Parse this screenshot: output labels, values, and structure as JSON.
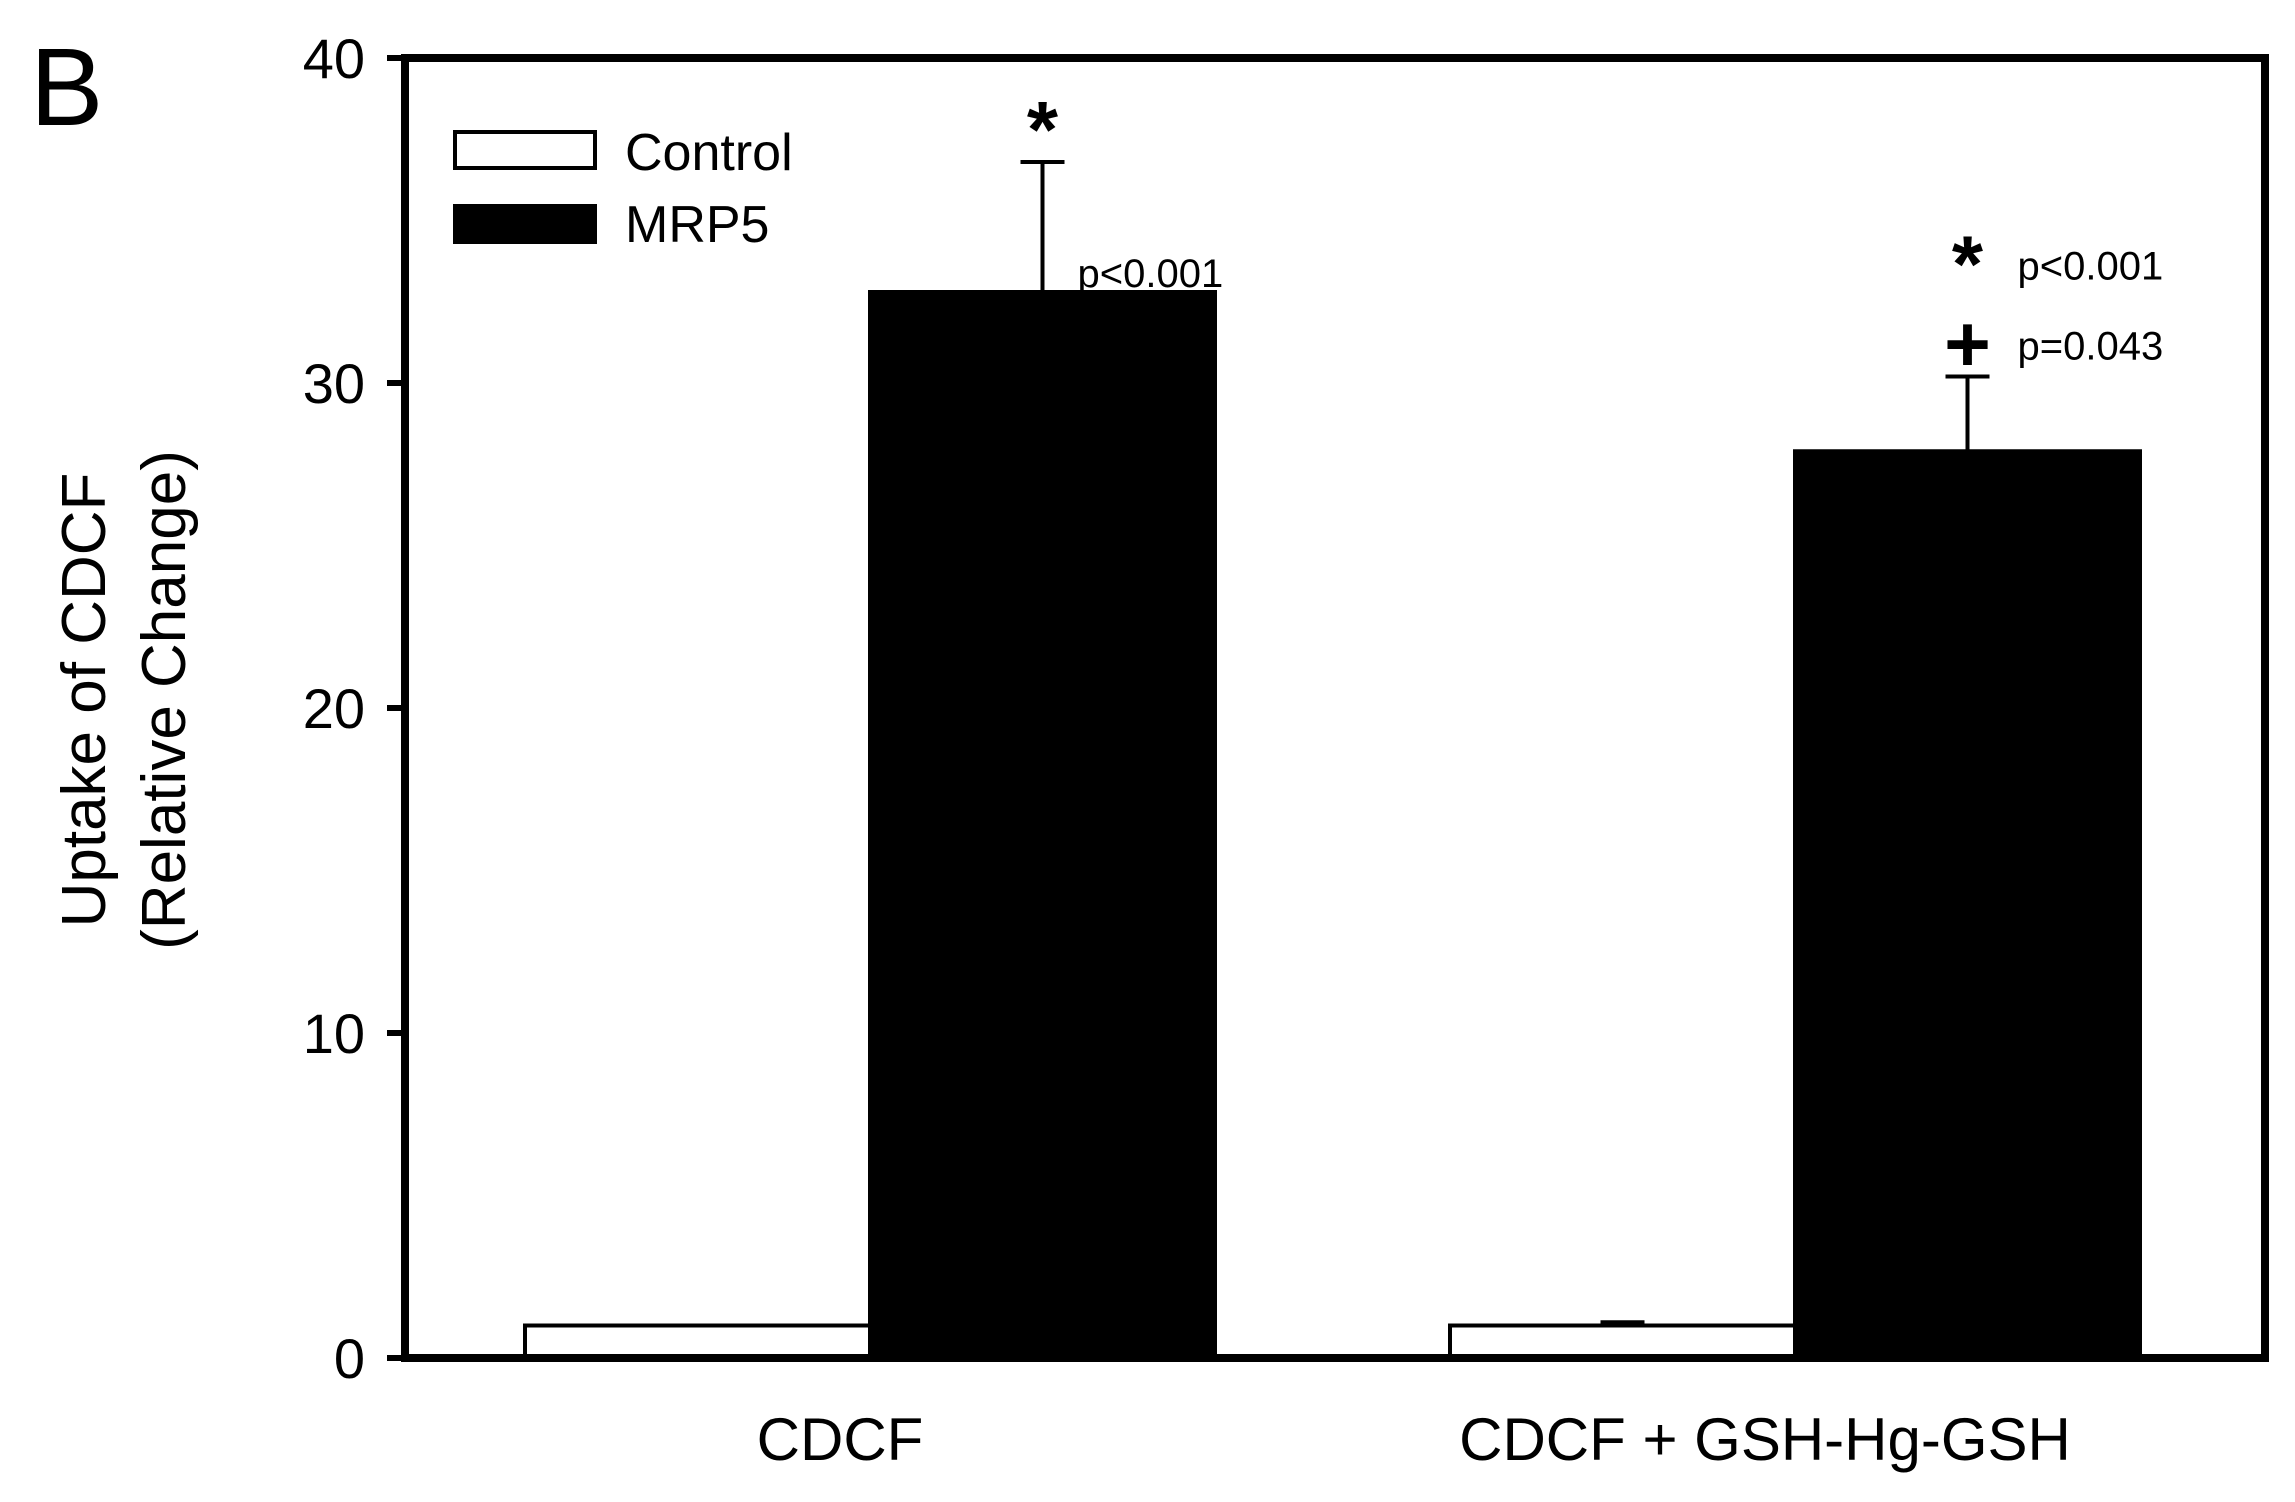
{
  "panel_label": "B",
  "colors": {
    "control": "#ffffff",
    "mrp5": "#000000",
    "axis": "#000000"
  },
  "chart_data": {
    "type": "bar",
    "categories": [
      "CDCF",
      "CDCF + GSH-Hg-GSH"
    ],
    "series": [
      {
        "name": "Control",
        "values": [
          1,
          1
        ],
        "errors": [
          0,
          0.1
        ]
      },
      {
        "name": "MRP5",
        "values": [
          32.8,
          27.9
        ],
        "errors": [
          4.0,
          2.3
        ]
      }
    ],
    "ylabel_lines": [
      "Uptake of CDCF",
      "(Relative Change)"
    ],
    "xlabel": "",
    "ylim": [
      0,
      40
    ],
    "yticks": [
      0,
      10,
      20,
      30,
      40
    ],
    "grid": false,
    "legend_position": "top-left",
    "annotations": [
      {
        "category": 0,
        "marker": "*",
        "text": "p<0.001"
      },
      {
        "category": 1,
        "marker": "*",
        "text": "p<0.001"
      },
      {
        "category": 1,
        "marker": "+",
        "text": "p=0.043"
      }
    ]
  }
}
